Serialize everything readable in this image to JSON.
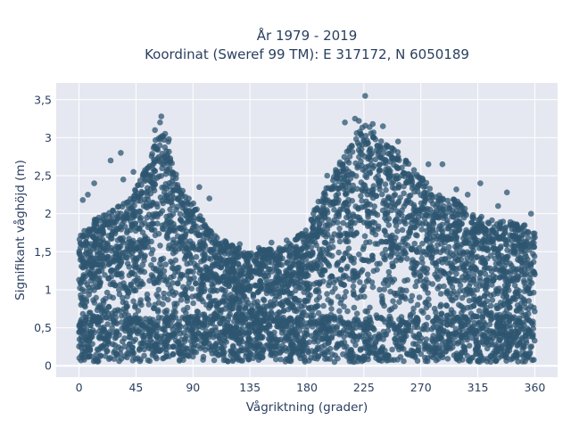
{
  "chart_data": {
    "type": "scatter",
    "title": [
      "År 1979 - 2019",
      "Koordinat (Sweref 99 TM): E 317172, N 6050189"
    ],
    "xlabel": "Vågriktning (grader)",
    "ylabel": "Signifikant våghöjd (m)",
    "xlim": [
      -18,
      378
    ],
    "ylim": [
      -0.15,
      3.72
    ],
    "x_ticks": [
      0,
      45,
      90,
      135,
      180,
      225,
      270,
      315,
      360
    ],
    "x_tick_labels": [
      "0",
      "45",
      "90",
      "135",
      "180",
      "225",
      "270",
      "315",
      "360"
    ],
    "y_ticks": [
      0,
      0.5,
      1,
      1.5,
      2,
      2.5,
      3,
      3.5
    ],
    "y_tick_labels": [
      "0",
      "0,5",
      "1",
      "1,5",
      "2",
      "2,5",
      "3",
      "3,5"
    ],
    "grid": true,
    "marker_color": "#2d5570",
    "plot_background": "#e5e8f1",
    "envelope": {
      "x": [
        0,
        10,
        20,
        30,
        40,
        50,
        55,
        60,
        65,
        70,
        75,
        80,
        90,
        100,
        110,
        120,
        135,
        150,
        165,
        180,
        190,
        200,
        210,
        220,
        225,
        230,
        240,
        250,
        260,
        270,
        280,
        290,
        300,
        310,
        320,
        330,
        340,
        350,
        360
      ],
      "y_max": [
        1.7,
        1.9,
        2.0,
        2.1,
        2.2,
        2.5,
        2.7,
        2.95,
        3.15,
        3.0,
        2.6,
        2.4,
        2.15,
        1.85,
        1.7,
        1.6,
        1.5,
        1.55,
        1.6,
        1.8,
        2.2,
        2.5,
        2.8,
        3.1,
        3.2,
        3.15,
        2.95,
        2.85,
        2.7,
        2.5,
        2.3,
        2.25,
        2.15,
        2.0,
        1.95,
        1.9,
        1.9,
        1.85,
        1.8
      ],
      "y_min": 0.05
    },
    "outliers": [
      {
        "x": 65,
        "y": 3.28
      },
      {
        "x": 64,
        "y": 3.2
      },
      {
        "x": 60,
        "y": 3.1
      },
      {
        "x": 68,
        "y": 3.05
      },
      {
        "x": 71,
        "y": 2.98
      },
      {
        "x": 43,
        "y": 2.55
      },
      {
        "x": 35,
        "y": 2.45
      },
      {
        "x": 25,
        "y": 2.7
      },
      {
        "x": 33,
        "y": 2.8
      },
      {
        "x": 3,
        "y": 2.18
      },
      {
        "x": 7,
        "y": 2.25
      },
      {
        "x": 12,
        "y": 2.4
      },
      {
        "x": 95,
        "y": 2.35
      },
      {
        "x": 103,
        "y": 2.2
      },
      {
        "x": 127,
        "y": 1.6
      },
      {
        "x": 142,
        "y": 1.55
      },
      {
        "x": 152,
        "y": 1.62
      },
      {
        "x": 164,
        "y": 1.65
      },
      {
        "x": 175,
        "y": 1.72
      },
      {
        "x": 186,
        "y": 2.05
      },
      {
        "x": 196,
        "y": 2.5
      },
      {
        "x": 210,
        "y": 3.2
      },
      {
        "x": 218,
        "y": 3.25
      },
      {
        "x": 221,
        "y": 3.22
      },
      {
        "x": 226,
        "y": 3.55
      },
      {
        "x": 232,
        "y": 3.18
      },
      {
        "x": 240,
        "y": 3.15
      },
      {
        "x": 252,
        "y": 2.95
      },
      {
        "x": 276,
        "y": 2.65
      },
      {
        "x": 287,
        "y": 2.65
      },
      {
        "x": 298,
        "y": 2.32
      },
      {
        "x": 307,
        "y": 2.25
      },
      {
        "x": 317,
        "y": 2.4
      },
      {
        "x": 331,
        "y": 2.1
      },
      {
        "x": 338,
        "y": 2.28
      },
      {
        "x": 346,
        "y": 1.85
      },
      {
        "x": 352,
        "y": 1.85
      },
      {
        "x": 357,
        "y": 2.0
      }
    ]
  }
}
